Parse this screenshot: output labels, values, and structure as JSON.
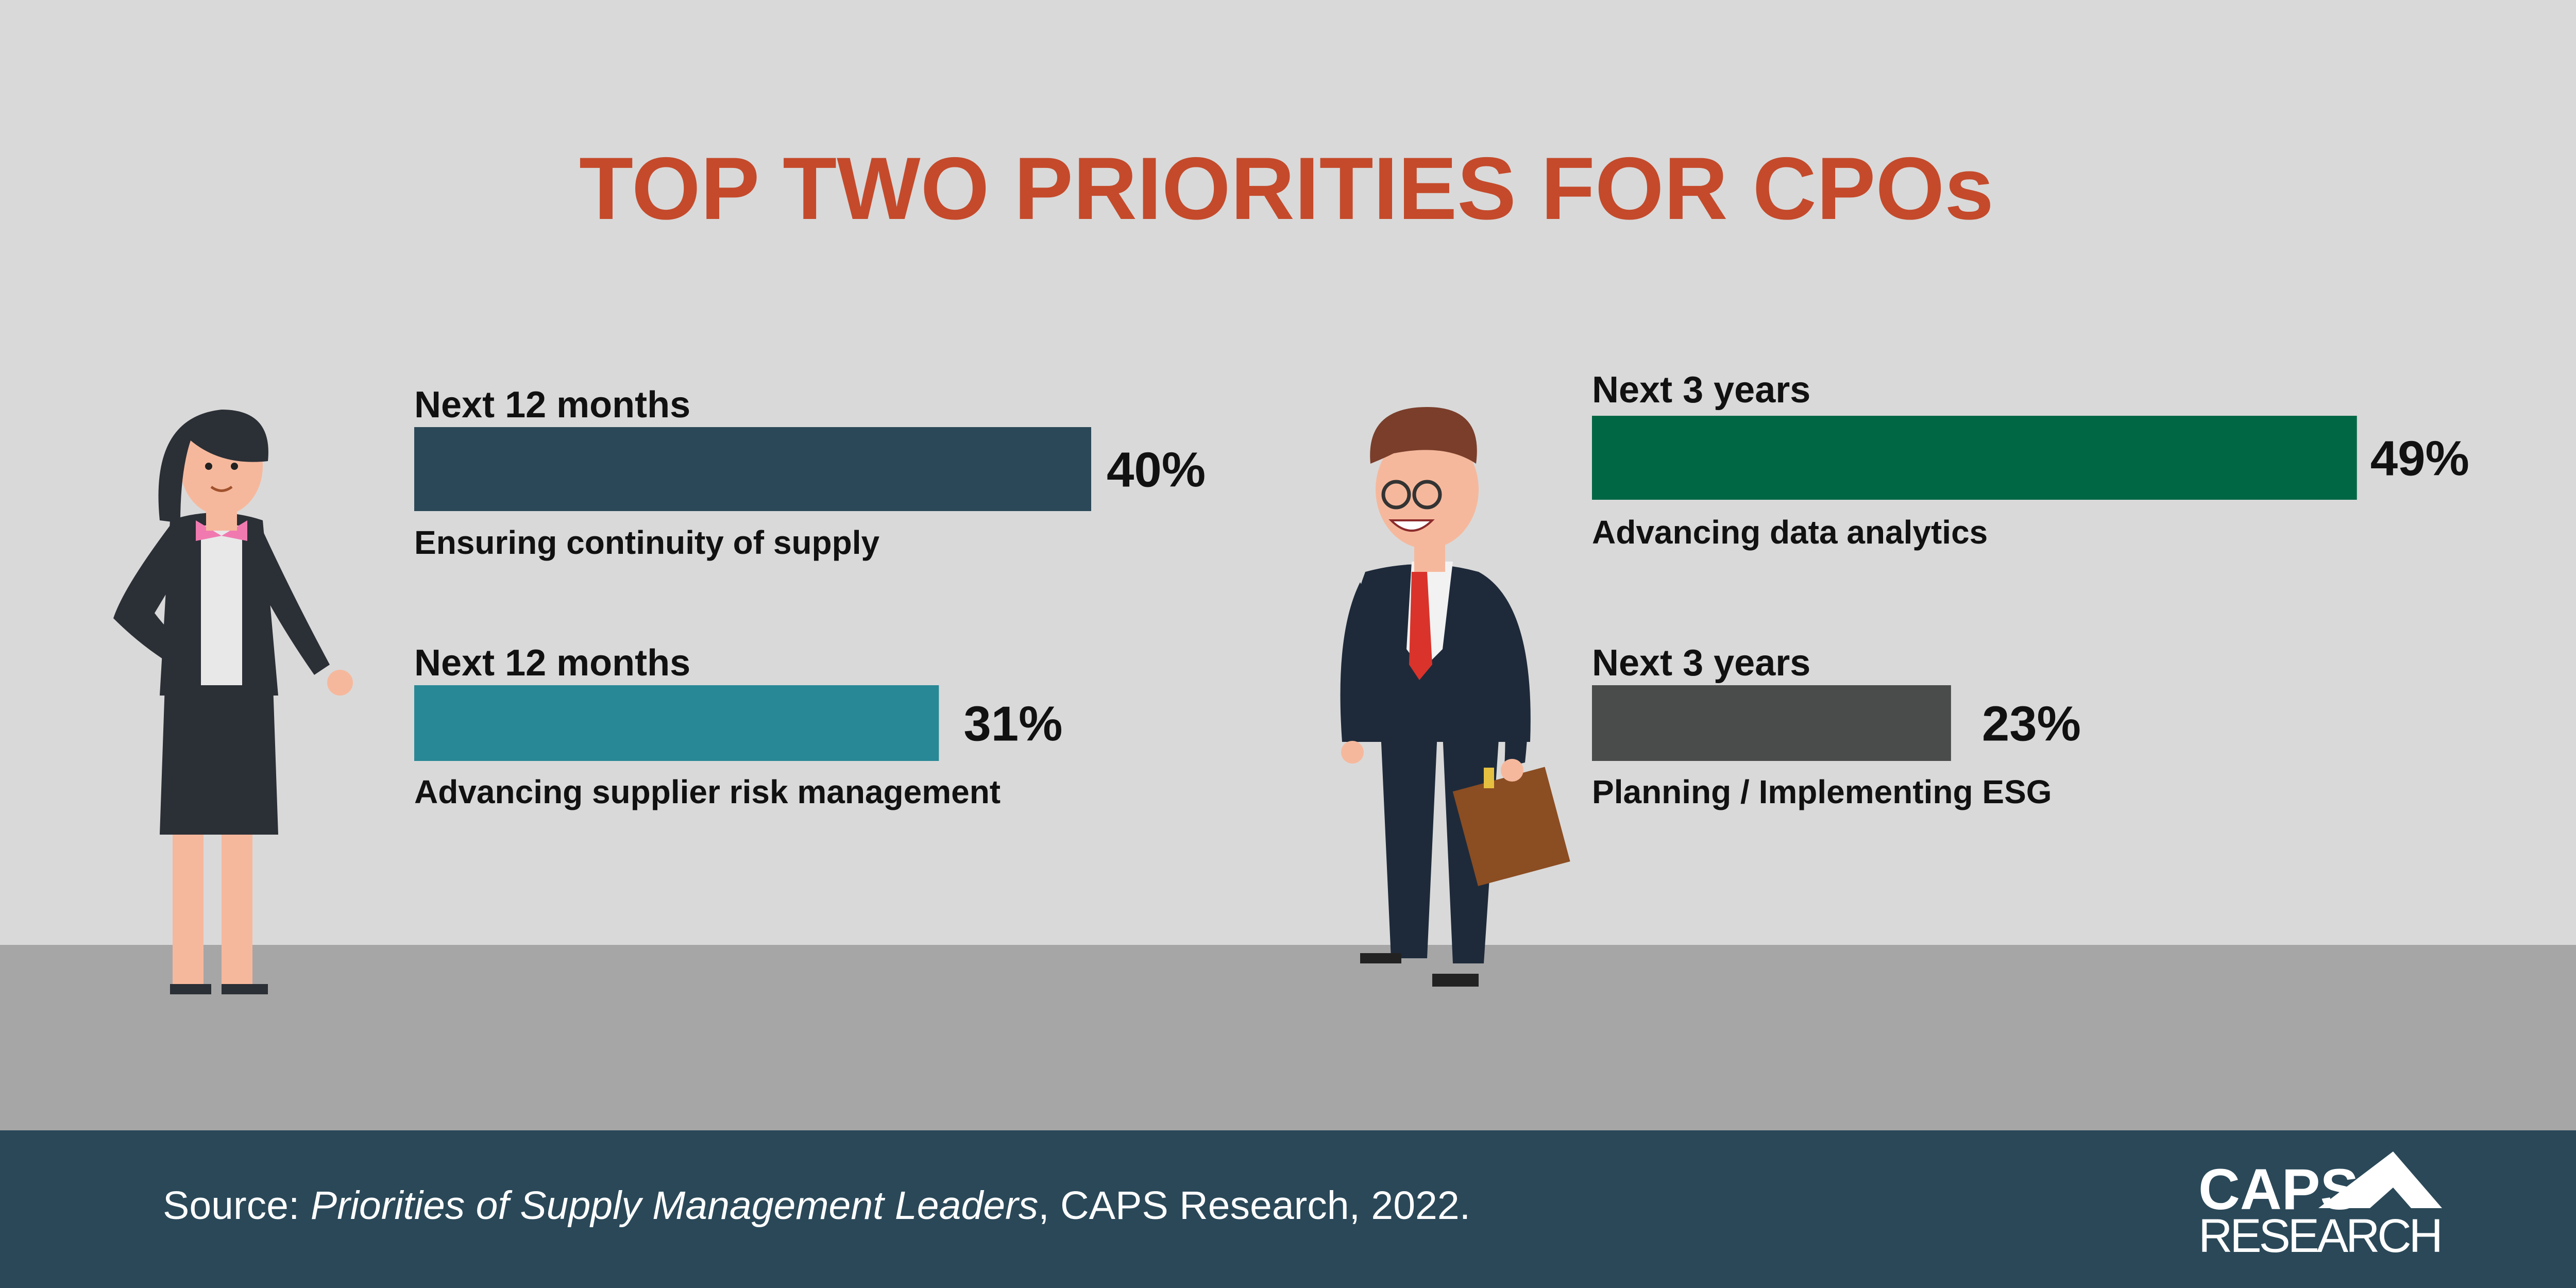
{
  "title": "TOP TWO PRIORITIES FOR CPOs",
  "chart_data": [
    {
      "type": "bar",
      "orientation": "horizontal",
      "xlim": [
        0,
        100
      ],
      "periods": [
        "Next 12 months",
        "Next 12 months"
      ],
      "categories": [
        "Ensuring continuity of supply",
        "Advancing supplier risk management"
      ],
      "values": [
        40,
        31
      ],
      "value_labels": [
        "40%",
        "31%"
      ],
      "colors": [
        "#2b4858",
        "#288896"
      ]
    },
    {
      "type": "bar",
      "orientation": "horizontal",
      "xlim": [
        0,
        100
      ],
      "periods": [
        "Next 3 years",
        "Next 3 years"
      ],
      "categories": [
        "Advancing data analytics",
        "Planning / Implementing ESG"
      ],
      "values": [
        49,
        23
      ],
      "value_labels": [
        "49%",
        "23%"
      ],
      "colors": [
        "#006744",
        "#494c4a"
      ]
    }
  ],
  "source": {
    "prefix": "Source: ",
    "title": "Priorities of Supply Management Leaders",
    "suffix": ", CAPS Research, 2022."
  },
  "logo": {
    "line1": "CAPS",
    "line2": "RESEARCH"
  }
}
